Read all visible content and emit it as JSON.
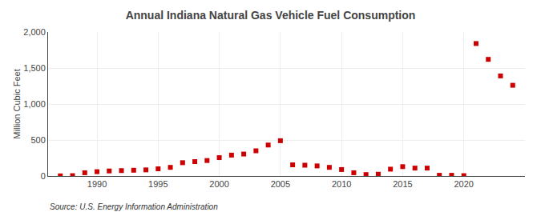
{
  "chart_data": {
    "type": "scatter",
    "title": "Annual Indiana Natural Gas Vehicle Fuel Consumption",
    "ylabel": "Million Cubic Feet",
    "annotations": [
      "Source: U.S. Energy Information Administration"
    ],
    "x": [
      1987,
      1988,
      1989,
      1990,
      1991,
      1992,
      1993,
      1994,
      1995,
      1996,
      1997,
      1998,
      1999,
      2000,
      2001,
      2002,
      2003,
      2004,
      2005,
      2006,
      2007,
      2008,
      2009,
      2010,
      2011,
      2012,
      2013,
      2014,
      2015,
      2016,
      2017,
      2018,
      2019,
      2020,
      2021,
      2022,
      2023,
      2024
    ],
    "values": [
      2,
      5,
      45,
      60,
      70,
      75,
      80,
      85,
      100,
      120,
      185,
      200,
      215,
      255,
      290,
      305,
      350,
      430,
      490,
      155,
      150,
      140,
      120,
      90,
      45,
      20,
      25,
      95,
      130,
      110,
      110,
      10,
      10,
      5,
      1840,
      1620,
      1390,
      1260
    ],
    "color": "#cc0000",
    "marker": "square",
    "xlim": [
      1986,
      2025
    ],
    "xticks": [
      1990,
      1995,
      2000,
      2005,
      2010,
      2015,
      2020
    ],
    "ylim": [
      0,
      2000
    ],
    "yticks": [
      0,
      500,
      {
        "value": 1000,
        "label": "1,000"
      },
      {
        "value": 1500,
        "label": "1,500"
      },
      {
        "value": 2000,
        "label": "2,000"
      }
    ],
    "grid": true
  }
}
